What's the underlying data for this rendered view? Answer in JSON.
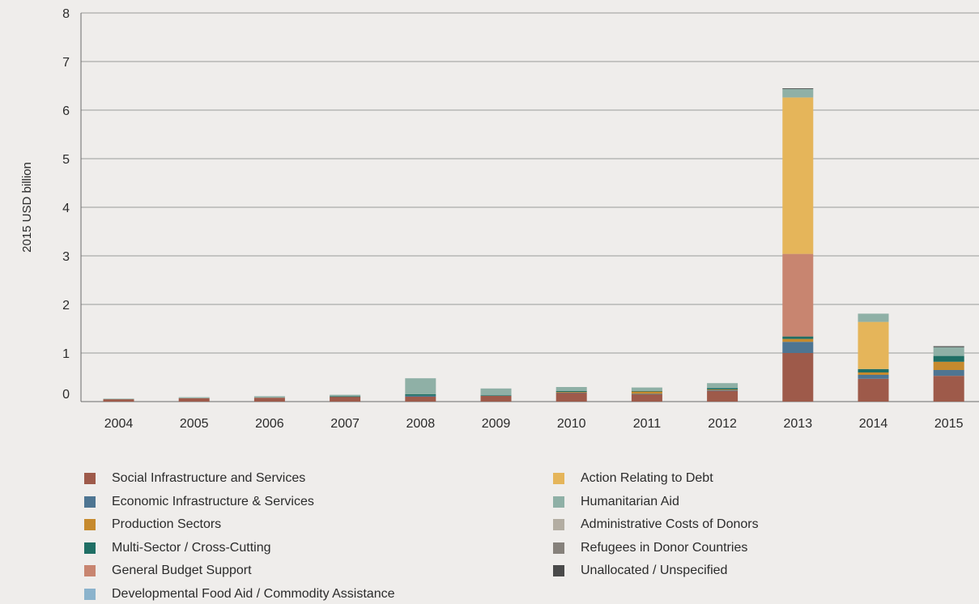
{
  "chart_data": {
    "type": "bar",
    "stacked": true,
    "ylabel": "2015 USD billion",
    "xlabel": "",
    "ylim": [
      0,
      8
    ],
    "yticks": [
      0,
      1,
      2,
      3,
      4,
      5,
      6,
      7,
      8
    ],
    "grid": true,
    "legend_position": "bottom",
    "categories": [
      "2004",
      "2005",
      "2006",
      "2007",
      "2008",
      "2009",
      "2010",
      "2011",
      "2012",
      "2013",
      "2014",
      "2015"
    ],
    "series": [
      {
        "name": "Social Infrastructure and Services",
        "color": "#9e5a4a",
        "values": [
          0.05,
          0.07,
          0.08,
          0.1,
          0.1,
          0.12,
          0.18,
          0.15,
          0.22,
          1.0,
          0.47,
          0.53
        ]
      },
      {
        "name": "Economic Infrastructure & Services",
        "color": "#4e7592",
        "values": [
          0.0,
          0.0,
          0.0,
          0.0,
          0.02,
          0.0,
          0.01,
          0.01,
          0.02,
          0.23,
          0.08,
          0.12
        ]
      },
      {
        "name": "Production Sectors",
        "color": "#c68a2e",
        "values": [
          0.0,
          0.0,
          0.0,
          0.0,
          0.0,
          0.0,
          0.01,
          0.05,
          0.01,
          0.06,
          0.05,
          0.17
        ]
      },
      {
        "name": "Multi-Sector / Cross-Cutting",
        "color": "#1f6e64",
        "values": [
          0.0,
          0.0,
          0.0,
          0.01,
          0.03,
          0.01,
          0.02,
          0.01,
          0.03,
          0.05,
          0.07,
          0.12
        ]
      },
      {
        "name": "General Budget Support",
        "color": "#c88570",
        "values": [
          0.0,
          0.0,
          0.0,
          0.0,
          0.0,
          0.0,
          0.0,
          0.0,
          0.0,
          1.7,
          0.0,
          0.0
        ]
      },
      {
        "name": "Developmental Food Aid / Commodity Assistance",
        "color": "#8bb3cc",
        "values": [
          0.0,
          0.0,
          0.0,
          0.0,
          0.0,
          0.0,
          0.0,
          0.0,
          0.0,
          0.0,
          0.0,
          0.0
        ]
      },
      {
        "name": "Action Relating to Debt",
        "color": "#e5b55a",
        "values": [
          0.0,
          0.0,
          0.0,
          0.0,
          0.0,
          0.0,
          0.0,
          0.0,
          0.0,
          3.22,
          0.97,
          0.0
        ]
      },
      {
        "name": "Humanitarian Aid",
        "color": "#8fb0a6",
        "values": [
          0.01,
          0.02,
          0.03,
          0.03,
          0.33,
          0.14,
          0.08,
          0.07,
          0.1,
          0.18,
          0.17,
          0.18
        ]
      },
      {
        "name": "Administrative Costs of Donors",
        "color": "#b3ada2",
        "values": [
          0.0,
          0.0,
          0.0,
          0.0,
          0.0,
          0.0,
          0.0,
          0.0,
          0.0,
          0.0,
          0.0,
          0.0
        ]
      },
      {
        "name": "Refugees in Donor Countries",
        "color": "#86817b",
        "values": [
          0.0,
          0.0,
          0.0,
          0.0,
          0.0,
          0.0,
          0.0,
          0.0,
          0.0,
          0.0,
          0.0,
          0.0
        ]
      },
      {
        "name": "Unallocated / Unspecified",
        "color": "#4a4a4a",
        "values": [
          0.0,
          0.0,
          0.0,
          0.0,
          0.0,
          0.0,
          0.0,
          0.0,
          0.0,
          0.01,
          0.0,
          0.02
        ]
      }
    ],
    "legend_order": [
      "Social Infrastructure and Services",
      "Economic Infrastructure & Services",
      "Production Sectors",
      "Multi-Sector / Cross-Cutting",
      "General Budget Support",
      "Developmental Food Aid / Commodity Assistance",
      "Action Relating to Debt",
      "Humanitarian Aid",
      "Administrative Costs of Donors",
      "Refugees in Donor Countries",
      "Unallocated / Unspecified"
    ]
  }
}
